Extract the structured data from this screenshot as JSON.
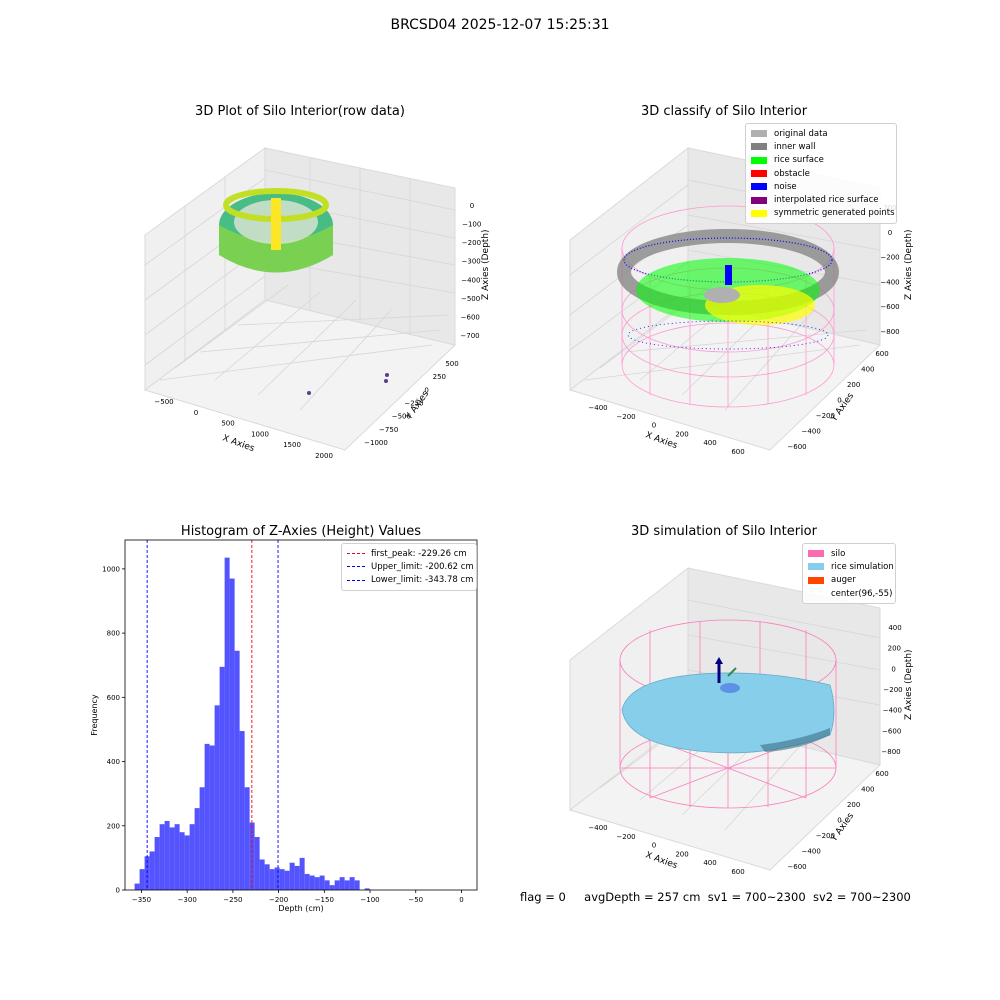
{
  "figure": {
    "title": "BRCSD04 2025-12-07 15:25:31"
  },
  "footer": {
    "flag": "flag = 0",
    "avg_depth": "avgDepth = 257 cm",
    "sv1": "sv1 = 700~2300",
    "sv2": "sv2 = 700~2300"
  },
  "colors": {
    "hist_bar": "#4b4bff",
    "first_peak": "#ff0000",
    "limits": "#0000ff",
    "original_data": "#b0b0b0",
    "inner_wall": "#808080",
    "rice_surface": "#00ff00",
    "obstacle": "#ff0000",
    "noise": "#0000ff",
    "interpolated_rice_surface": "#800080",
    "symmetric_generated_points": "#ffff00",
    "silo": "#ff69b4",
    "rice_simulation": "#87ceeb",
    "auger": "#ff4500",
    "raw_points": "#5ec962"
  },
  "chart_data": [
    {
      "type": "scatter",
      "title": "3D Plot of Silo Interior(row data)",
      "xlabel": "X Axies",
      "ylabel": "Y Axies",
      "zlabel": "Z Axies (Depth)",
      "x_ticks": [
        "-500",
        "0",
        "500",
        "1000",
        "1500",
        "2000"
      ],
      "y_ticks": [
        "500",
        "250",
        "0",
        "-250",
        "-500",
        "-750",
        "-1000"
      ],
      "z_ticks": [
        "0",
        "-100",
        "-200",
        "-300",
        "-400",
        "-500",
        "-600",
        "-700"
      ],
      "colormap": "viridis",
      "grid": true
    },
    {
      "type": "scatter",
      "title": "3D classify of Silo Interior",
      "xlabel": "X Axies",
      "ylabel": "Y Axies",
      "zlabel": "Z Axies (Depth)",
      "x_ticks": [
        "-400",
        "-200",
        "0",
        "200",
        "400",
        "600"
      ],
      "y_ticks": [
        "600",
        "400",
        "200",
        "0",
        "-200",
        "-400",
        "-600"
      ],
      "z_ticks": [
        "200",
        "0",
        "-200",
        "-400",
        "-600",
        "-800"
      ],
      "legend": [
        "original data",
        "inner wall",
        "rice surface",
        "obstacle",
        "noise",
        "interpolated rice surface",
        "symmetric generated points"
      ],
      "legend_position": "top-right",
      "grid": true
    },
    {
      "type": "bar",
      "title": "Histogram of Z-Axies (Height) Values",
      "xlabel": "Depth (cm)",
      "ylabel": "Frequency",
      "xlim": [
        -368,
        17
      ],
      "ylim": [
        0,
        1090
      ],
      "x_ticks": [
        -350,
        -300,
        -250,
        -200,
        -150,
        -100,
        -50,
        0
      ],
      "y_ticks": [
        0,
        200,
        400,
        600,
        800,
        1000
      ],
      "bin_start": -357.5,
      "bin_width": 5.47,
      "values": [
        20,
        65,
        105,
        120,
        165,
        205,
        215,
        195,
        205,
        180,
        170,
        205,
        255,
        320,
        455,
        450,
        575,
        695,
        1035,
        970,
        745,
        495,
        320,
        210,
        165,
        95,
        80,
        65,
        70,
        65,
        60,
        85,
        75,
        100,
        50,
        45,
        40,
        45,
        30,
        15,
        30,
        40,
        30,
        40,
        30,
        0,
        5,
        0
      ],
      "vlines": [
        {
          "label": "first_peak: -229.26 cm",
          "x": -229.26,
          "color_key": "first_peak"
        },
        {
          "label": "Upper_limit: -200.62 cm",
          "x": -200.62,
          "color_key": "limits"
        },
        {
          "label": "Lower_limit: -343.78 cm",
          "x": -343.78,
          "color_key": "limits"
        }
      ],
      "legend_position": "top-right",
      "grid": false
    },
    {
      "type": "scatter",
      "title": "3D simulation of Silo Interior",
      "xlabel": "X Axies",
      "ylabel": "Y Axies",
      "zlabel": "Z Axies (Depth)",
      "x_ticks": [
        "-400",
        "-200",
        "0",
        "200",
        "400",
        "600"
      ],
      "y_ticks": [
        "600",
        "400",
        "200",
        "0",
        "-200",
        "-400",
        "-600"
      ],
      "z_ticks": [
        "400",
        "200",
        "0",
        "-200",
        "-400",
        "-600",
        "-800"
      ],
      "legend": [
        "silo",
        "rice simulation",
        "auger",
        "center(96,-55)"
      ],
      "legend_position": "top-right",
      "grid": true
    }
  ]
}
